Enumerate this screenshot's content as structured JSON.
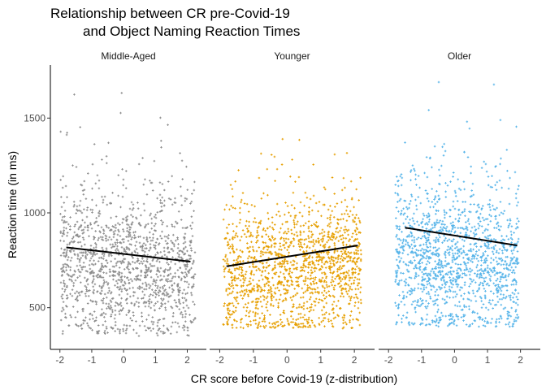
{
  "chart_data": {
    "type": "scatter",
    "title": "Relationship between CR pre-Covid-19\nand Object Naming Reaction Times",
    "xlabel": "CR score before Covid-19 (z-distribution)",
    "ylabel": "Reaction time (in ms)",
    "xlim": [
      -2.3,
      2.6
    ],
    "ylim": [
      280,
      1780
    ],
    "x_ticks": [
      -2,
      -1,
      0,
      1,
      2
    ],
    "y_ticks": [
      500,
      1000,
      1500
    ],
    "grid": false,
    "panels": [
      {
        "name": "Middle-Aged",
        "color": "#8c8c8c",
        "x_range": [
          -2.0,
          2.25
        ],
        "n_points": 1400,
        "center_rt": 720,
        "spread_rt": 190,
        "min_rt": 350,
        "max_rt": 1720,
        "trend": {
          "x": [
            -1.8,
            2.1
          ],
          "y": [
            818,
            743
          ]
        }
      },
      {
        "name": "Younger",
        "color": "#e69f00",
        "x_range": [
          -1.9,
          2.2
        ],
        "n_points": 1500,
        "center_rt": 705,
        "spread_rt": 170,
        "min_rt": 390,
        "max_rt": 1400,
        "trend": {
          "x": [
            -1.8,
            2.1
          ],
          "y": [
            718,
            828
          ]
        }
      },
      {
        "name": "Older",
        "color": "#56b4e9",
        "x_range": [
          -1.8,
          1.95
        ],
        "n_points": 1450,
        "center_rt": 760,
        "spread_rt": 200,
        "min_rt": 400,
        "max_rt": 1710,
        "trend": {
          "x": [
            -1.5,
            1.9
          ],
          "y": [
            922,
            828
          ]
        }
      }
    ]
  }
}
